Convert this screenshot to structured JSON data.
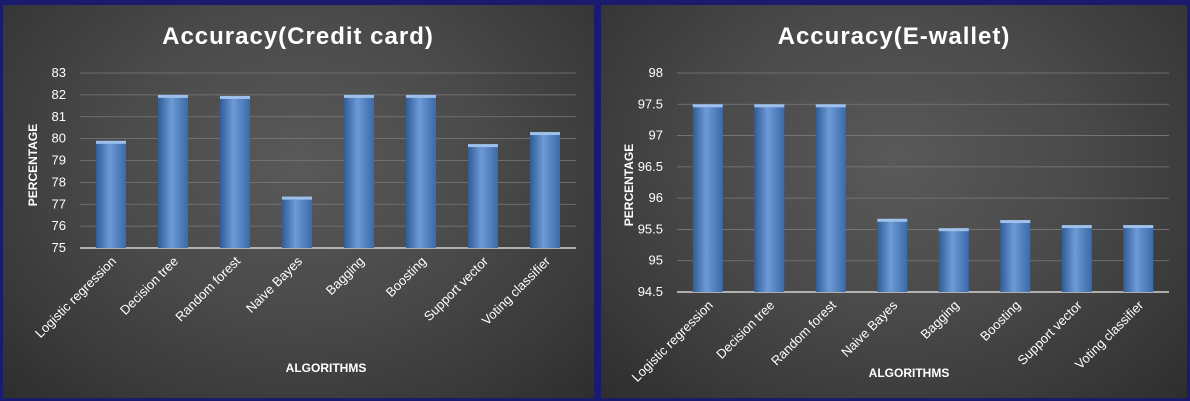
{
  "chart_data": [
    {
      "type": "bar",
      "title": "Accuracy(Credit card)",
      "xlabel": "ALGORITHMS",
      "ylabel": "PERCENTAGE",
      "categories": [
        "Logistic regression",
        "Decision tree",
        "Random forest",
        "Naive Bayes",
        "Bagging",
        "Boosting",
        "Support vector",
        "Voting classifier"
      ],
      "values": [
        79.9,
        82.0,
        81.95,
        77.35,
        82.0,
        82.0,
        79.75,
        80.3
      ],
      "ylim": [
        75,
        83
      ],
      "yticks": [
        "75",
        "76",
        "77",
        "78",
        "79",
        "80",
        "81",
        "82",
        "83"
      ],
      "grid": true,
      "bar_color": "#4f81bd"
    },
    {
      "type": "bar",
      "title": "Accuracy(E-wallet)",
      "xlabel": "ALGORITHMS",
      "ylabel": "PERCENTAGE",
      "categories": [
        "Logistic regression",
        "Decision tree",
        "Random forest",
        "Naive Bayes",
        "Bagging",
        "Boosting",
        "Support vector",
        "Voting classifier"
      ],
      "values": [
        97.5,
        97.5,
        97.5,
        95.67,
        95.52,
        95.65,
        95.57,
        95.57
      ],
      "ylim": [
        94.5,
        98
      ],
      "yticks": [
        "94.5",
        "95",
        "95.5",
        "96",
        "96.5",
        "97",
        "97.5",
        "98"
      ],
      "grid": true,
      "bar_color": "#4f81bd"
    }
  ]
}
